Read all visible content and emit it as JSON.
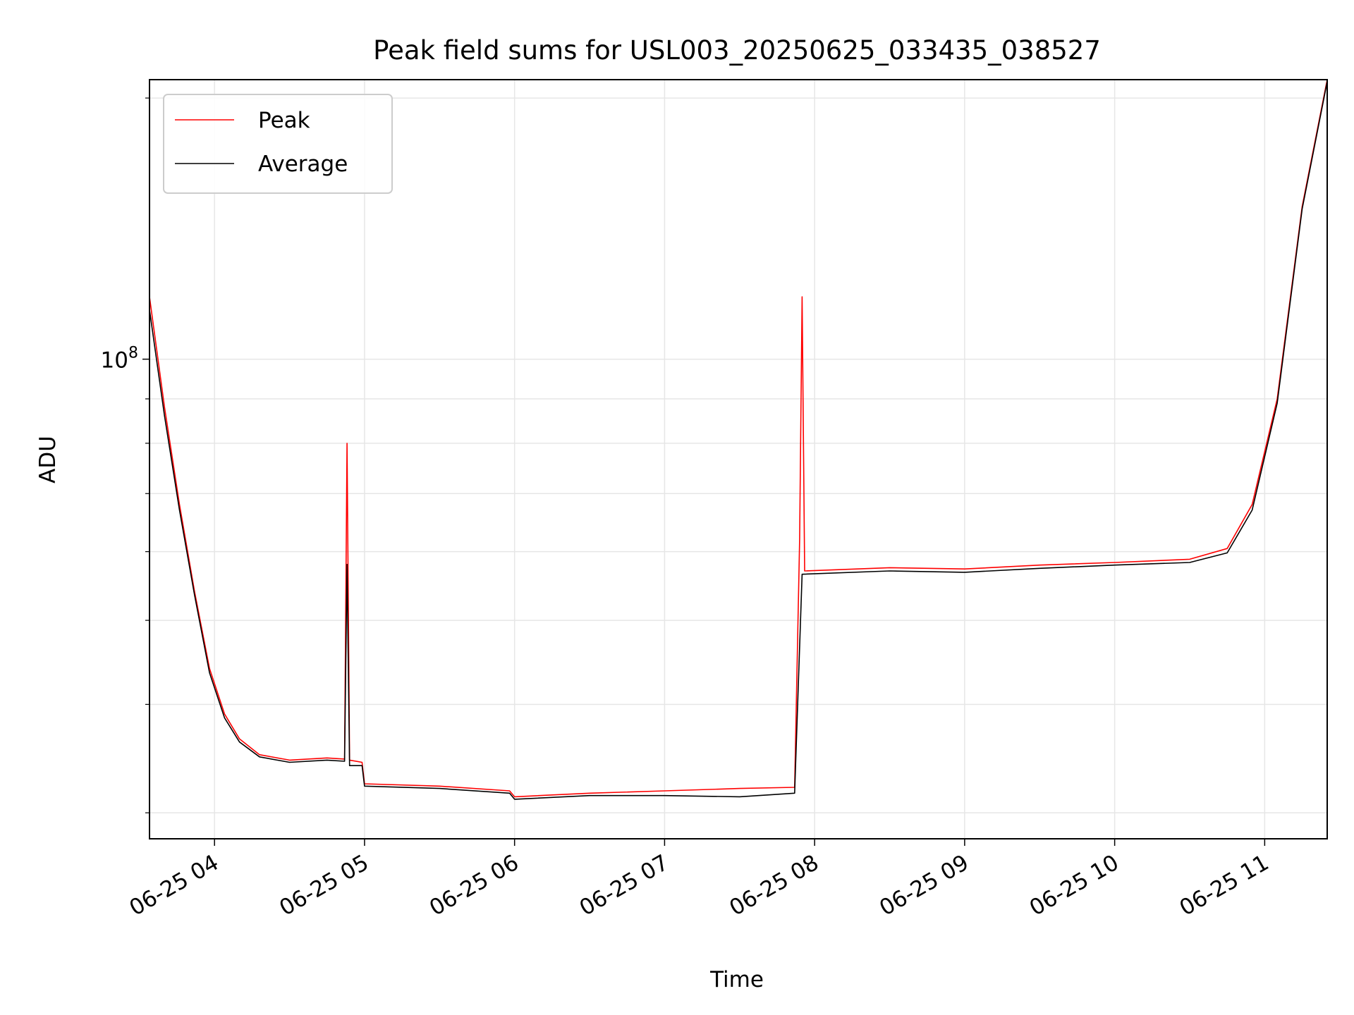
{
  "chart_data": {
    "type": "line",
    "title": "Peak field sums for USL003_20250625_033435_038527",
    "xlabel": "Time",
    "ylabel": "ADU",
    "y_scale": "log",
    "x_tick_labels": [
      "06-25 04",
      "06-25 05",
      "06-25 06",
      "06-25 07",
      "06-25 08",
      "06-25 09",
      "06-25 10",
      "06-25 11"
    ],
    "y_tick_labels": [
      "10",
      "8"
    ],
    "x_range": [
      "2025-06-25 03:34",
      "2025-06-25 11:25"
    ],
    "y_range": [
      28000000,
      210000000
    ],
    "grid": true,
    "legend_position": "top-left",
    "series": [
      {
        "name": "Peak",
        "color": "#ff0000",
        "points": [
          [
            "2025-06-25 03:34",
            118000000
          ],
          [
            "2025-06-25 03:40",
            88000000
          ],
          [
            "2025-06-25 03:46",
            68000000
          ],
          [
            "2025-06-25 03:52",
            54000000
          ],
          [
            "2025-06-25 03:58",
            44000000
          ],
          [
            "2025-06-25 04:04",
            39000000
          ],
          [
            "2025-06-25 04:10",
            36500000
          ],
          [
            "2025-06-25 04:18",
            35000000
          ],
          [
            "2025-06-25 04:30",
            34500000
          ],
          [
            "2025-06-25 04:45",
            34700000
          ],
          [
            "2025-06-25 04:52",
            34600000
          ],
          [
            "2025-06-25 04:53",
            80000000
          ],
          [
            "2025-06-25 04:54",
            34500000
          ],
          [
            "2025-06-25 04:59",
            34300000
          ],
          [
            "2025-06-25 05:00",
            32400000
          ],
          [
            "2025-06-25 05:30",
            32200000
          ],
          [
            "2025-06-25 05:58",
            31800000
          ],
          [
            "2025-06-25 06:00",
            31300000
          ],
          [
            "2025-06-25 06:30",
            31600000
          ],
          [
            "2025-06-25 07:00",
            31800000
          ],
          [
            "2025-06-25 07:30",
            32000000
          ],
          [
            "2025-06-25 07:52",
            32100000
          ],
          [
            "2025-06-25 07:54",
            62000000
          ],
          [
            "2025-06-25 07:55",
            118000000
          ],
          [
            "2025-06-25 07:56",
            57000000
          ],
          [
            "2025-06-25 08:30",
            57500000
          ],
          [
            "2025-06-25 09:00",
            57300000
          ],
          [
            "2025-06-25 09:30",
            57900000
          ],
          [
            "2025-06-25 10:00",
            58300000
          ],
          [
            "2025-06-25 10:30",
            58800000
          ],
          [
            "2025-06-25 10:45",
            60500000
          ],
          [
            "2025-06-25 10:55",
            68000000
          ],
          [
            "2025-06-25 11:05",
            90000000
          ],
          [
            "2025-06-25 11:15",
            150000000
          ],
          [
            "2025-06-25 11:25",
            210000000
          ]
        ]
      },
      {
        "name": "Average",
        "color": "#000000",
        "points": [
          [
            "2025-06-25 03:34",
            114000000
          ],
          [
            "2025-06-25 03:40",
            86000000
          ],
          [
            "2025-06-25 03:46",
            67000000
          ],
          [
            "2025-06-25 03:52",
            53500000
          ],
          [
            "2025-06-25 03:58",
            43500000
          ],
          [
            "2025-06-25 04:04",
            38600000
          ],
          [
            "2025-06-25 04:10",
            36200000
          ],
          [
            "2025-06-25 04:18",
            34800000
          ],
          [
            "2025-06-25 04:30",
            34300000
          ],
          [
            "2025-06-25 04:45",
            34500000
          ],
          [
            "2025-06-25 04:52",
            34400000
          ],
          [
            "2025-06-25 04:53",
            58000000
          ],
          [
            "2025-06-25 04:54",
            34000000
          ],
          [
            "2025-06-25 04:59",
            34000000
          ],
          [
            "2025-06-25 05:00",
            32200000
          ],
          [
            "2025-06-25 05:30",
            32000000
          ],
          [
            "2025-06-25 05:58",
            31600000
          ],
          [
            "2025-06-25 06:00",
            31100000
          ],
          [
            "2025-06-25 06:30",
            31400000
          ],
          [
            "2025-06-25 07:00",
            31400000
          ],
          [
            "2025-06-25 07:30",
            31300000
          ],
          [
            "2025-06-25 07:52",
            31600000
          ],
          [
            "2025-06-25 07:55",
            56500000
          ],
          [
            "2025-06-25 08:30",
            57000000
          ],
          [
            "2025-06-25 09:00",
            56800000
          ],
          [
            "2025-06-25 09:30",
            57400000
          ],
          [
            "2025-06-25 10:00",
            57900000
          ],
          [
            "2025-06-25 10:30",
            58300000
          ],
          [
            "2025-06-25 10:45",
            59800000
          ],
          [
            "2025-06-25 10:55",
            67000000
          ],
          [
            "2025-06-25 11:05",
            89000000
          ],
          [
            "2025-06-25 11:15",
            149000000
          ],
          [
            "2025-06-25 11:25",
            209000000
          ]
        ]
      }
    ]
  }
}
